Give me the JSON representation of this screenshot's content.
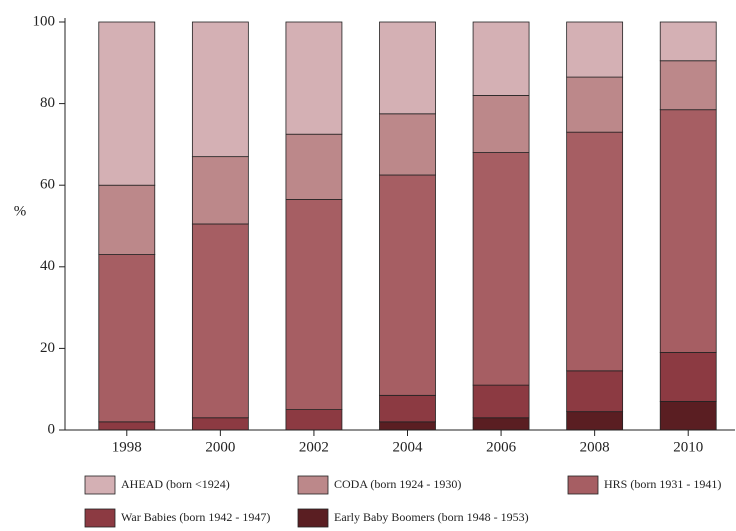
{
  "chart_data": {
    "type": "stacked_bar",
    "ylabel": "%",
    "categories": [
      "1998",
      "2000",
      "2002",
      "2004",
      "2006",
      "2008",
      "2010"
    ],
    "series": [
      {
        "name": "Early Baby Boomers (born 1948 - 1953)",
        "color": "#5a1e22",
        "values": [
          0,
          0,
          0,
          2,
          3,
          4.5,
          7
        ]
      },
      {
        "name": "War Babies (born 1942 - 1947)",
        "color": "#8c3a42",
        "values": [
          2,
          3,
          5,
          6.5,
          8,
          10,
          12
        ]
      },
      {
        "name": "HRS (born 1931 - 1941)",
        "color": "#a65e63",
        "values": [
          41,
          47.5,
          51.5,
          54,
          57,
          58.5,
          59.5
        ]
      },
      {
        "name": "CODA (born 1924 - 1930)",
        "color": "#bc888a",
        "values": [
          17,
          16.5,
          16,
          15,
          14,
          13.5,
          12
        ]
      },
      {
        "name": "AHEAD (born <1924)",
        "color": "#d4b0b4",
        "values": [
          40,
          33,
          27.5,
          22.5,
          18,
          13.5,
          9.5
        ]
      }
    ],
    "ylim": [
      0,
      100
    ],
    "yticks": [
      0,
      20,
      40,
      60,
      80,
      100
    ]
  }
}
